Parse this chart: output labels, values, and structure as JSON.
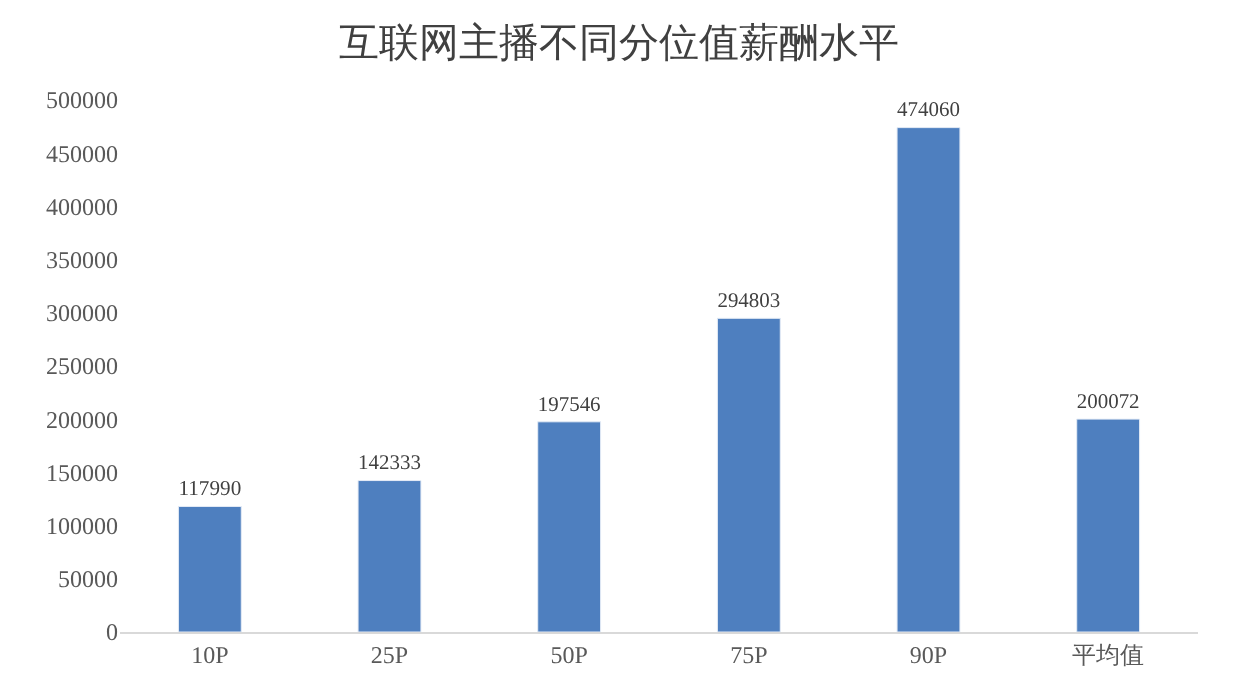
{
  "chart_data": {
    "type": "bar",
    "title": "互联网主播不同分位值薪酬水平",
    "categories": [
      "10P",
      "25P",
      "50P",
      "75P",
      "90P",
      "平均值"
    ],
    "values": [
      117990,
      142333,
      197546,
      294803,
      474060,
      200072
    ],
    "color": "#4e7fbf",
    "data_labels": true,
    "ylim": [
      0,
      500000
    ],
    "yticks": [
      0,
      50000,
      100000,
      150000,
      200000,
      250000,
      300000,
      350000,
      400000,
      450000,
      500000
    ]
  }
}
